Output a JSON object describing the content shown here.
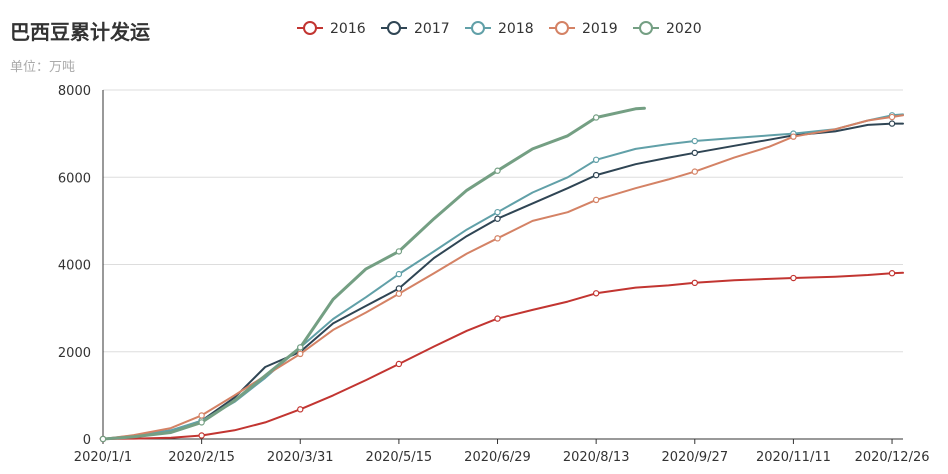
{
  "chart_data": {
    "type": "line",
    "title": "巴西豆累计发运",
    "subtitle": "单位：万吨",
    "x_tick_labels": [
      "2020/1/1",
      "2020/2/15",
      "2020/3/31",
      "2020/5/15",
      "2020/6/29",
      "2020/8/13",
      "2020/9/27",
      "2020/11/11",
      "2020/12/26"
    ],
    "y_ticks": [
      0,
      2000,
      4000,
      6000,
      8000
    ],
    "ylim": [
      0,
      8000
    ],
    "xlim": [
      "2020/1/1",
      "2020/12/31"
    ],
    "legend_position": "top-center",
    "grid": "horizontal",
    "series": [
      {
        "name": "2016",
        "color": "#c23531",
        "points": [
          [
            "2020/1/1",
            0
          ],
          [
            "2020/1/15",
            10
          ],
          [
            "2020/2/1",
            30
          ],
          [
            "2020/2/15",
            80
          ],
          [
            "2020/3/1",
            200
          ],
          [
            "2020/3/15",
            380
          ],
          [
            "2020/3/31",
            680
          ],
          [
            "2020/4/15",
            1000
          ],
          [
            "2020/4/30",
            1350
          ],
          [
            "2020/5/15",
            1720
          ],
          [
            "2020/5/31",
            2120
          ],
          [
            "2020/6/15",
            2480
          ],
          [
            "2020/6/29",
            2760
          ],
          [
            "2020/7/15",
            2960
          ],
          [
            "2020/7/31",
            3150
          ],
          [
            "2020/8/13",
            3340
          ],
          [
            "2020/8/31",
            3470
          ],
          [
            "2020/9/15",
            3520
          ],
          [
            "2020/9/27",
            3580
          ],
          [
            "2020/10/15",
            3640
          ],
          [
            "2020/10/31",
            3670
          ],
          [
            "2020/11/11",
            3690
          ],
          [
            "2020/11/30",
            3720
          ],
          [
            "2020/12/15",
            3760
          ],
          [
            "2020/12/26",
            3800
          ],
          [
            "2020/12/31",
            3810
          ]
        ],
        "markers": [
          [
            "2020/1/1",
            0
          ],
          [
            "2020/2/15",
            80
          ],
          [
            "2020/3/31",
            680
          ],
          [
            "2020/5/15",
            1720
          ],
          [
            "2020/6/29",
            2760
          ],
          [
            "2020/8/13",
            3340
          ],
          [
            "2020/9/27",
            3580
          ],
          [
            "2020/11/11",
            3690
          ],
          [
            "2020/12/26",
            3800
          ]
        ]
      },
      {
        "name": "2017",
        "color": "#2f4554",
        "points": [
          [
            "2020/1/1",
            0
          ],
          [
            "2020/1/15",
            60
          ],
          [
            "2020/2/1",
            180
          ],
          [
            "2020/2/15",
            420
          ],
          [
            "2020/3/1",
            950
          ],
          [
            "2020/3/15",
            1650
          ],
          [
            "2020/3/31",
            2000
          ],
          [
            "2020/4/15",
            2650
          ],
          [
            "2020/4/30",
            3050
          ],
          [
            "2020/5/15",
            3450
          ],
          [
            "2020/5/31",
            4150
          ],
          [
            "2020/6/15",
            4650
          ],
          [
            "2020/6/29",
            5050
          ],
          [
            "2020/7/15",
            5400
          ],
          [
            "2020/7/31",
            5750
          ],
          [
            "2020/8/13",
            6050
          ],
          [
            "2020/8/31",
            6300
          ],
          [
            "2020/9/15",
            6450
          ],
          [
            "2020/9/27",
            6560
          ],
          [
            "2020/10/15",
            6720
          ],
          [
            "2020/10/31",
            6860
          ],
          [
            "2020/11/11",
            6960
          ],
          [
            "2020/11/30",
            7050
          ],
          [
            "2020/12/15",
            7200
          ],
          [
            "2020/12/26",
            7230
          ],
          [
            "2020/12/31",
            7230
          ]
        ],
        "markers": [
          [
            "2020/1/1",
            0
          ],
          [
            "2020/2/15",
            420
          ],
          [
            "2020/3/31",
            2000
          ],
          [
            "2020/5/15",
            3450
          ],
          [
            "2020/6/29",
            5050
          ],
          [
            "2020/8/13",
            6050
          ],
          [
            "2020/9/27",
            6560
          ],
          [
            "2020/11/11",
            6960
          ],
          [
            "2020/12/26",
            7230
          ]
        ]
      },
      {
        "name": "2018",
        "color": "#61a0a8",
        "points": [
          [
            "2020/1/1",
            0
          ],
          [
            "2020/1/15",
            80
          ],
          [
            "2020/2/1",
            200
          ],
          [
            "2020/2/15",
            420
          ],
          [
            "2020/3/1",
            850
          ],
          [
            "2020/3/15",
            1400
          ],
          [
            "2020/3/31",
            2100
          ],
          [
            "2020/4/15",
            2750
          ],
          [
            "2020/4/30",
            3250
          ],
          [
            "2020/5/15",
            3780
          ],
          [
            "2020/5/31",
            4300
          ],
          [
            "2020/6/15",
            4800
          ],
          [
            "2020/6/29",
            5200
          ],
          [
            "2020/7/15",
            5650
          ],
          [
            "2020/7/31",
            6000
          ],
          [
            "2020/8/13",
            6400
          ],
          [
            "2020/8/31",
            6650
          ],
          [
            "2020/9/15",
            6760
          ],
          [
            "2020/9/27",
            6830
          ],
          [
            "2020/10/15",
            6900
          ],
          [
            "2020/10/31",
            6960
          ],
          [
            "2020/11/11",
            7000
          ],
          [
            "2020/11/30",
            7100
          ],
          [
            "2020/12/15",
            7300
          ],
          [
            "2020/12/26",
            7420
          ],
          [
            "2020/12/31",
            7440
          ]
        ],
        "markers": [
          [
            "2020/1/1",
            0
          ],
          [
            "2020/2/15",
            420
          ],
          [
            "2020/3/31",
            2100
          ],
          [
            "2020/5/15",
            3780
          ],
          [
            "2020/6/29",
            5200
          ],
          [
            "2020/8/13",
            6400
          ],
          [
            "2020/9/27",
            6830
          ],
          [
            "2020/11/11",
            7000
          ],
          [
            "2020/12/26",
            7420
          ]
        ]
      },
      {
        "name": "2019",
        "color": "#d48265",
        "points": [
          [
            "2020/1/1",
            0
          ],
          [
            "2020/1/15",
            90
          ],
          [
            "2020/2/1",
            250
          ],
          [
            "2020/2/15",
            540
          ],
          [
            "2020/3/1",
            1000
          ],
          [
            "2020/3/15",
            1450
          ],
          [
            "2020/3/31",
            1950
          ],
          [
            "2020/4/15",
            2500
          ],
          [
            "2020/4/30",
            2900
          ],
          [
            "2020/5/15",
            3330
          ],
          [
            "2020/5/31",
            3800
          ],
          [
            "2020/6/15",
            4250
          ],
          [
            "2020/6/29",
            4600
          ],
          [
            "2020/7/15",
            5000
          ],
          [
            "2020/7/31",
            5200
          ],
          [
            "2020/8/13",
            5480
          ],
          [
            "2020/8/31",
            5750
          ],
          [
            "2020/9/15",
            5950
          ],
          [
            "2020/9/27",
            6130
          ],
          [
            "2020/10/15",
            6450
          ],
          [
            "2020/10/31",
            6700
          ],
          [
            "2020/11/11",
            6930
          ],
          [
            "2020/11/30",
            7100
          ],
          [
            "2020/12/15",
            7300
          ],
          [
            "2020/12/26",
            7380
          ],
          [
            "2020/12/31",
            7420
          ]
        ],
        "markers": [
          [
            "2020/1/1",
            0
          ],
          [
            "2020/2/15",
            540
          ],
          [
            "2020/3/31",
            1950
          ],
          [
            "2020/5/15",
            3330
          ],
          [
            "2020/6/29",
            4600
          ],
          [
            "2020/8/13",
            5480
          ],
          [
            "2020/9/27",
            6130
          ],
          [
            "2020/11/11",
            6930
          ],
          [
            "2020/12/26",
            7380
          ]
        ]
      },
      {
        "name": "2020",
        "color": "#749f83",
        "points": [
          [
            "2020/1/1",
            0
          ],
          [
            "2020/1/15",
            50
          ],
          [
            "2020/2/1",
            150
          ],
          [
            "2020/2/15",
            380
          ],
          [
            "2020/3/1",
            880
          ],
          [
            "2020/3/15",
            1450
          ],
          [
            "2020/3/31",
            2100
          ],
          [
            "2020/4/15",
            3200
          ],
          [
            "2020/4/30",
            3900
          ],
          [
            "2020/5/15",
            4300
          ],
          [
            "2020/5/31",
            5050
          ],
          [
            "2020/6/15",
            5700
          ],
          [
            "2020/6/29",
            6150
          ],
          [
            "2020/7/15",
            6650
          ],
          [
            "2020/7/31",
            6950
          ],
          [
            "2020/8/13",
            7370
          ],
          [
            "2020/8/31",
            7570
          ],
          [
            "2020/9/4",
            7580
          ]
        ],
        "markers": [
          [
            "2020/1/1",
            0
          ],
          [
            "2020/2/15",
            380
          ],
          [
            "2020/3/31",
            2100
          ],
          [
            "2020/5/15",
            4300
          ],
          [
            "2020/6/29",
            6150
          ],
          [
            "2020/8/13",
            7370
          ]
        ]
      }
    ]
  }
}
